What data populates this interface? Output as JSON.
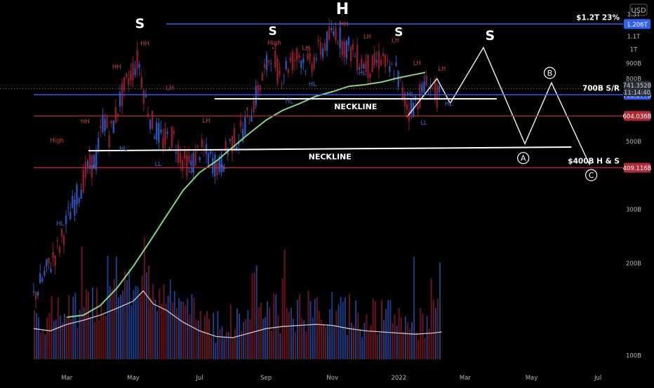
{
  "chart_data": {
    "type": "candlestick",
    "title": "",
    "currency": "USD",
    "ylabel": "",
    "xlabel": "",
    "y_scale": "log",
    "ylim": [
      90,
      1450
    ],
    "x_ticks": [
      {
        "label": "Mar",
        "t": 1
      },
      {
        "label": "May",
        "t": 3
      },
      {
        "label": "Jul",
        "t": 5
      },
      {
        "label": "Sep",
        "t": 7
      },
      {
        "label": "Nov",
        "t": 9
      },
      {
        "label": "2022",
        "t": 11
      },
      {
        "label": "Mar",
        "t": 13
      },
      {
        "label": "May",
        "t": 15
      },
      {
        "label": "Jul",
        "t": 17
      }
    ],
    "y_ticks": [
      {
        "label": "1.3T",
        "value": 1300
      },
      {
        "label": "1.1T",
        "value": 1100
      },
      {
        "label": "1T",
        "value": 1000
      },
      {
        "label": "900B",
        "value": 900
      },
      {
        "label": "800B",
        "value": 800
      },
      {
        "label": "600B",
        "value": 600
      },
      {
        "label": "500B",
        "value": 500
      },
      {
        "label": "300B",
        "value": 300
      },
      {
        "label": "200B",
        "value": 200
      },
      {
        "label": "100B",
        "value": 100
      }
    ],
    "price_path": [
      [
        0,
        155
      ],
      [
        0.4,
        190
      ],
      [
        0.8,
        230
      ],
      [
        1.0,
        275
      ],
      [
        1.3,
        330
      ],
      [
        1.6,
        400
      ],
      [
        1.9,
        440
      ],
      [
        2.1,
        600
      ],
      [
        2.3,
        520
      ],
      [
        2.6,
        680
      ],
      [
        2.9,
        820
      ],
      [
        3.15,
        930
      ],
      [
        3.35,
        700
      ],
      [
        3.6,
        560
      ],
      [
        3.9,
        500
      ],
      [
        4.2,
        520
      ],
      [
        4.5,
        430
      ],
      [
        4.75,
        420
      ],
      [
        5.0,
        470
      ],
      [
        5.3,
        440
      ],
      [
        5.6,
        410
      ],
      [
        5.9,
        490
      ],
      [
        6.2,
        520
      ],
      [
        6.5,
        610
      ],
      [
        6.8,
        750
      ],
      [
        7.0,
        860
      ],
      [
        7.15,
        990
      ],
      [
        7.4,
        820
      ],
      [
        7.7,
        900
      ],
      [
        8.0,
        960
      ],
      [
        8.3,
        880
      ],
      [
        8.6,
        980
      ],
      [
        8.9,
        1080
      ],
      [
        9.1,
        1160
      ],
      [
        9.3,
        1050
      ],
      [
        9.6,
        980
      ],
      [
        9.9,
        900
      ],
      [
        10.2,
        870
      ],
      [
        10.5,
        950
      ],
      [
        10.7,
        830
      ],
      [
        10.9,
        870
      ],
      [
        11.1,
        720
      ],
      [
        11.3,
        630
      ],
      [
        11.6,
        700
      ],
      [
        11.9,
        780
      ],
      [
        12.1,
        720
      ],
      [
        12.25,
        690
      ]
    ],
    "ma_path": [
      [
        1.0,
        133
      ],
      [
        1.5,
        135
      ],
      [
        2.0,
        145
      ],
      [
        2.5,
        165
      ],
      [
        3.0,
        195
      ],
      [
        3.5,
        235
      ],
      [
        4.0,
        285
      ],
      [
        4.5,
        345
      ],
      [
        5.0,
        395
      ],
      [
        5.5,
        430
      ],
      [
        6.0,
        478
      ],
      [
        6.5,
        530
      ],
      [
        7.0,
        585
      ],
      [
        7.5,
        630
      ],
      [
        8.0,
        662
      ],
      [
        8.5,
        700
      ],
      [
        9.0,
        725
      ],
      [
        9.5,
        755
      ],
      [
        10.0,
        765
      ],
      [
        10.5,
        780
      ],
      [
        11.0,
        805
      ],
      [
        11.5,
        825
      ],
      [
        11.8,
        838
      ]
    ],
    "volume_path": [
      [
        0,
        122
      ],
      [
        0.5,
        120
      ],
      [
        1.0,
        126
      ],
      [
        1.5,
        130
      ],
      [
        2.0,
        135
      ],
      [
        2.5,
        142
      ],
      [
        3.0,
        150
      ],
      [
        3.3,
        162
      ],
      [
        3.6,
        147
      ],
      [
        4.0,
        140
      ],
      [
        4.5,
        128
      ],
      [
        5.0,
        120
      ],
      [
        5.5,
        115
      ],
      [
        6.0,
        114
      ],
      [
        6.5,
        118
      ],
      [
        7.0,
        122
      ],
      [
        7.5,
        124
      ],
      [
        8.0,
        125
      ],
      [
        8.5,
        126
      ],
      [
        9.0,
        125
      ],
      [
        9.5,
        122
      ],
      [
        10.0,
        120
      ],
      [
        10.5,
        119
      ],
      [
        11.0,
        118
      ],
      [
        11.5,
        117
      ],
      [
        12.0,
        118
      ],
      [
        12.3,
        119
      ]
    ],
    "projection_path": [
      [
        11.25,
        600
      ],
      [
        12.15,
        800
      ],
      [
        12.55,
        665
      ],
      [
        13.55,
        1010
      ],
      [
        14.8,
        490
      ],
      [
        15.6,
        775
      ],
      [
        16.75,
        418
      ]
    ],
    "levels": [
      {
        "label": "$1.2T 23%",
        "badge": "1.206T",
        "value": 1206,
        "color": "#2962ff",
        "x_start": 4.0
      },
      {
        "label": "700B S/R",
        "badge": "708.177B",
        "value": 708.177,
        "color": "#2962ff",
        "x_start": 0
      },
      {
        "label": "",
        "badge": "604.036B",
        "value": 604.036,
        "color": "#b22833",
        "x_start": 0
      },
      {
        "label": "$400B H & S",
        "badge": "409.116B",
        "value": 409.116,
        "color": "#b22833",
        "x_start": 0
      }
    ],
    "current_price": {
      "value": "741.352B",
      "countdown": "11:14:40",
      "level": 741.352
    },
    "necklines": [
      {
        "label": "NECKLINE",
        "points": [
          [
            1.65,
            465
          ],
          [
            16.2,
            478
          ]
        ]
      },
      {
        "label": "NECKLINE",
        "points": [
          [
            5.45,
            687
          ],
          [
            13.95,
            687
          ]
        ]
      }
    ],
    "pattern_labels": [
      {
        "text": "S",
        "t": 3.2,
        "value": 1170,
        "size": 19
      },
      {
        "text": "H",
        "t": 9.3,
        "value": 1300,
        "size": 22
      },
      {
        "text": "S",
        "t": 7.2,
        "value": 1110,
        "size": 17
      },
      {
        "text": "S",
        "t": 11.0,
        "value": 1100,
        "size": 17
      },
      {
        "text": "S",
        "t": 13.75,
        "value": 1070,
        "size": 19
      }
    ],
    "wave_labels": [
      {
        "text": "A",
        "t": 14.75,
        "value": 440
      },
      {
        "text": "B",
        "t": 15.55,
        "value": 835
      },
      {
        "text": "C",
        "t": 16.8,
        "value": 387
      }
    ],
    "swing_labels": [
      {
        "text": "HH",
        "t": 3.35,
        "value": 1025,
        "color": "#d43a3a"
      },
      {
        "text": "HH",
        "t": 2.5,
        "value": 860,
        "color": "#d43a3a"
      },
      {
        "text": "HH",
        "t": 1.55,
        "value": 570,
        "color": "#d43a3a"
      },
      {
        "text": "High",
        "t": 0.7,
        "value": 495,
        "color": "#d43a3a"
      },
      {
        "text": "HL",
        "t": 0.8,
        "value": 265,
        "color": "#3b6fe0"
      },
      {
        "text": "HL",
        "t": 1.8,
        "value": 405,
        "color": "#3b6fe0"
      },
      {
        "text": "HL",
        "t": 2.7,
        "value": 465,
        "color": "#3b6fe0"
      },
      {
        "text": "LH",
        "t": 4.1,
        "value": 735,
        "color": "#d43a3a"
      },
      {
        "text": "LL",
        "t": 3.75,
        "value": 415,
        "color": "#3b6fe0"
      },
      {
        "text": "LH",
        "t": 5.2,
        "value": 575,
        "color": "#d43a3a"
      },
      {
        "text": "LL",
        "t": 4.75,
        "value": 395,
        "color": "#3b6fe0"
      },
      {
        "text": "HL",
        "t": 5.7,
        "value": 407,
        "color": "#3b6fe0"
      },
      {
        "text": "High",
        "t": 7.25,
        "value": 1030,
        "color": "#d43a3a"
      },
      {
        "text": "LH",
        "t": 8.2,
        "value": 990,
        "color": "#d43a3a"
      },
      {
        "text": "HL",
        "t": 8.4,
        "value": 755,
        "color": "#3b6fe0"
      },
      {
        "text": "HL",
        "t": 7.7,
        "value": 665,
        "color": "#3b6fe0"
      },
      {
        "text": "HH",
        "t": 9.35,
        "value": 1190,
        "color": "#d43a3a"
      },
      {
        "text": "LH",
        "t": 10.05,
        "value": 1080,
        "color": "#d43a3a"
      },
      {
        "text": "LH",
        "t": 10.9,
        "value": 1050,
        "color": "#d43a3a"
      },
      {
        "text": "LH",
        "t": 11.55,
        "value": 885,
        "color": "#d43a3a"
      },
      {
        "text": "HL",
        "t": 9.9,
        "value": 820,
        "color": "#3b6fe0"
      },
      {
        "text": "LH",
        "t": 12.3,
        "value": 848,
        "color": "#d43a3a"
      },
      {
        "text": "HL",
        "t": 11.35,
        "value": 700,
        "color": "#3b6fe0"
      },
      {
        "text": "HL",
        "t": 12.5,
        "value": 652,
        "color": "#3b6fe0"
      },
      {
        "text": "LL",
        "t": 11.75,
        "value": 565,
        "color": "#3b6fe0"
      }
    ],
    "colors": {
      "background": "#000000",
      "bull": "#2a53b8",
      "bear": "#8e1b2a",
      "moving_average": "#86d47e",
      "volume_average": "#c8c8c8",
      "projection": "#e8e8e8",
      "neckline": "#ffffff",
      "axis_text": "#b2b5be"
    },
    "grid": false,
    "legend": "none"
  }
}
